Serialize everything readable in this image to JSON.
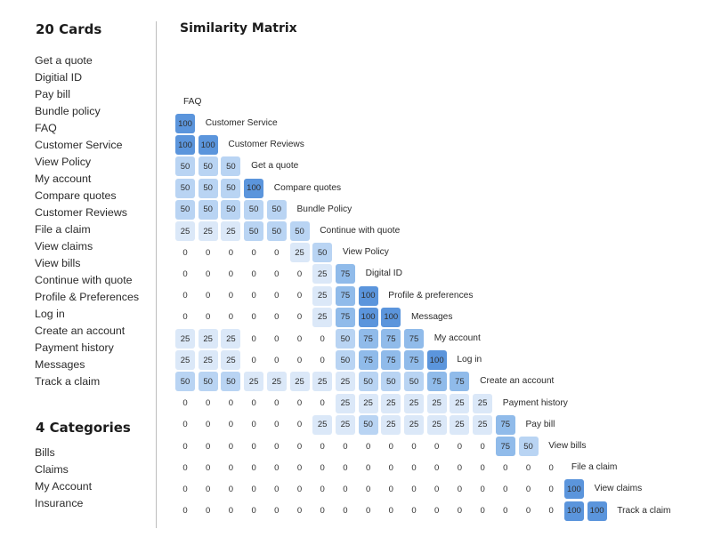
{
  "cards": {
    "heading": "20 Cards",
    "items": [
      "Get a quote",
      "Digitial ID",
      "Pay bill",
      "Bundle policy",
      "FAQ",
      "Customer Service",
      "View Policy",
      "My account",
      "Compare quotes",
      "Customer Reviews",
      "File a claim",
      "View claims",
      "View bills",
      "Continue with quote",
      "Profile & Preferences",
      "Log in",
      "Create an account",
      "Payment history",
      "Messages",
      "Track a claim"
    ]
  },
  "categories": {
    "heading": "4 Categories",
    "items": [
      "Bills",
      "Claims",
      "My Account",
      "Insurance"
    ]
  },
  "matrix": {
    "title": "Similarity Matrix",
    "first_label": "FAQ",
    "rows": [
      {
        "label": "Customer Service",
        "values": [
          100
        ]
      },
      {
        "label": "Customer Reviews",
        "values": [
          100,
          100
        ]
      },
      {
        "label": "Get a quote",
        "values": [
          50,
          50,
          50
        ]
      },
      {
        "label": "Compare quotes",
        "values": [
          50,
          50,
          50,
          100
        ]
      },
      {
        "label": "Bundle Policy",
        "values": [
          50,
          50,
          50,
          50,
          50
        ]
      },
      {
        "label": "Continue with quote",
        "values": [
          25,
          25,
          25,
          50,
          50,
          50
        ]
      },
      {
        "label": "View Policy",
        "values": [
          0,
          0,
          0,
          0,
          0,
          25,
          50
        ]
      },
      {
        "label": "Digital ID",
        "values": [
          0,
          0,
          0,
          0,
          0,
          0,
          25,
          75
        ]
      },
      {
        "label": "Profile & preferences",
        "values": [
          0,
          0,
          0,
          0,
          0,
          0,
          25,
          75,
          100
        ]
      },
      {
        "label": "Messages",
        "values": [
          0,
          0,
          0,
          0,
          0,
          0,
          25,
          75,
          100,
          100
        ]
      },
      {
        "label": "My account",
        "values": [
          25,
          25,
          25,
          0,
          0,
          0,
          0,
          50,
          75,
          75,
          75
        ]
      },
      {
        "label": "Log in",
        "values": [
          25,
          25,
          25,
          0,
          0,
          0,
          0,
          50,
          75,
          75,
          75,
          100
        ]
      },
      {
        "label": "Create an account",
        "values": [
          50,
          50,
          50,
          25,
          25,
          25,
          25,
          25,
          50,
          50,
          50,
          75,
          75
        ]
      },
      {
        "label": "Payment history",
        "values": [
          0,
          0,
          0,
          0,
          0,
          0,
          0,
          25,
          25,
          25,
          25,
          25,
          25,
          25
        ]
      },
      {
        "label": "Pay bill",
        "values": [
          0,
          0,
          0,
          0,
          0,
          0,
          25,
          25,
          50,
          25,
          25,
          25,
          25,
          25,
          75
        ]
      },
      {
        "label": "View bills",
        "values": [
          0,
          0,
          0,
          0,
          0,
          0,
          0,
          0,
          0,
          0,
          0,
          0,
          0,
          0,
          75,
          50
        ]
      },
      {
        "label": "File a claim",
        "values": [
          0,
          0,
          0,
          0,
          0,
          0,
          0,
          0,
          0,
          0,
          0,
          0,
          0,
          0,
          0,
          0,
          0
        ]
      },
      {
        "label": "View claims",
        "values": [
          0,
          0,
          0,
          0,
          0,
          0,
          0,
          0,
          0,
          0,
          0,
          0,
          0,
          0,
          0,
          0,
          0,
          100
        ]
      },
      {
        "label": "Track a claim",
        "values": [
          0,
          0,
          0,
          0,
          0,
          0,
          0,
          0,
          0,
          0,
          0,
          0,
          0,
          0,
          0,
          0,
          0,
          100,
          100
        ]
      }
    ],
    "colors": {
      "100": "#5b95dc",
      "75": "#90bbea",
      "50": "#b9d4f3",
      "25": "#dbe8f8",
      "0": "#ffffff"
    }
  }
}
